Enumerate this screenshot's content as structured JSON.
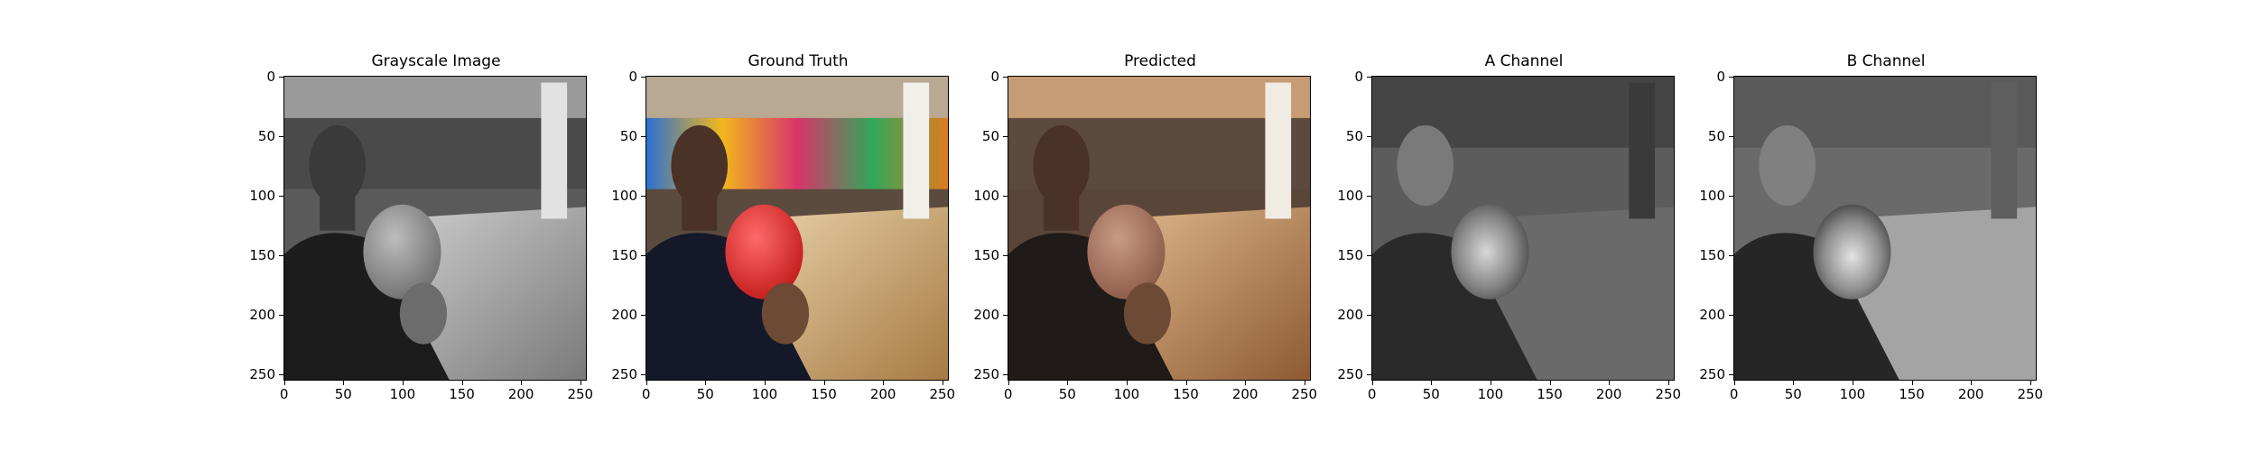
{
  "figure": {
    "panels": [
      {
        "title": "Grayscale Image",
        "kind": "grayscale"
      },
      {
        "title": "Ground Truth",
        "kind": "color"
      },
      {
        "title": "Predicted",
        "kind": "predicted"
      },
      {
        "title": "A Channel",
        "kind": "channel_a"
      },
      {
        "title": "B Channel",
        "kind": "channel_b"
      }
    ],
    "x_ticks": [
      "0",
      "50",
      "100",
      "150",
      "200",
      "250"
    ],
    "y_ticks": [
      "0",
      "50",
      "100",
      "150",
      "200",
      "250"
    ],
    "image_extent": [
      0,
      255
    ]
  }
}
